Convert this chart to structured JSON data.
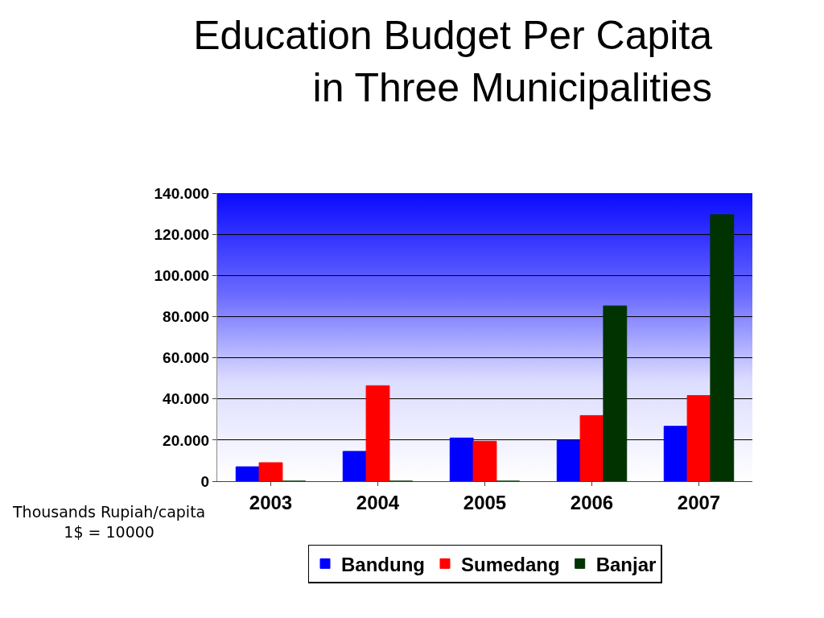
{
  "chart_data": {
    "type": "bar",
    "title": "Education Budget Per Capita\nin Three Municipalities",
    "categories": [
      "2003",
      "2004",
      "2005",
      "2006",
      "2007"
    ],
    "series": [
      {
        "name": "Bandung",
        "color": "#0000ff",
        "values": [
          7000,
          14500,
          21000,
          19700,
          26700
        ]
      },
      {
        "name": "Sumedang",
        "color": "#ff0000",
        "values": [
          9000,
          46400,
          19400,
          31900,
          41600
        ]
      },
      {
        "name": "Banjar",
        "color": "#003300",
        "values": [
          0,
          0,
          0,
          85200,
          129500
        ]
      }
    ],
    "ylim": [
      0,
      140000
    ],
    "yticks": [
      0,
      {
        "value": 20000,
        "label": "20.000"
      },
      {
        "value": 40000,
        "label": "40.000"
      },
      {
        "value": 60000,
        "label": "60.000"
      },
      {
        "value": 80000,
        "label": "80.000"
      },
      {
        "value": 100000,
        "label": "100.000"
      },
      {
        "value": 120000,
        "label": "120.000"
      },
      {
        "value": 140000,
        "label": "140.000"
      }
    ],
    "grid": "y",
    "legend": "bottom",
    "annotations": [
      "Thousands Rupiah/capita\n1$ = 10000"
    ]
  }
}
